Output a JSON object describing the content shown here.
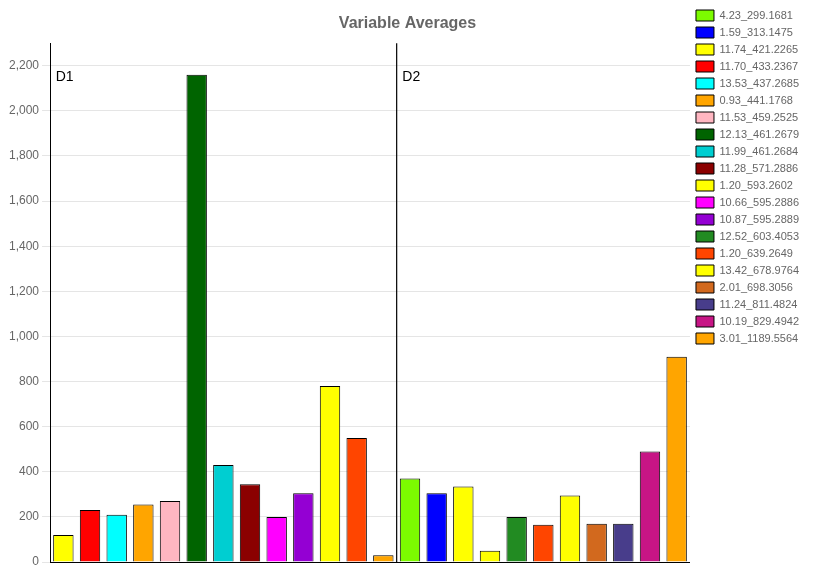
{
  "chart_data": {
    "type": "bar",
    "title": "Variable Averages",
    "categories": [
      null,
      null,
      null,
      null,
      null,
      null,
      null,
      null,
      null,
      null,
      null,
      null,
      null,
      null,
      null,
      null,
      null,
      null,
      null,
      null,
      null,
      null,
      null,
      null
    ],
    "series": [
      {
        "name": "4.23_299.1681",
        "color": "#7CFC00",
        "values": [
          null,
          null,
          null,
          null,
          null,
          null,
          null,
          null,
          null,
          null,
          null,
          null,
          null,
          370,
          null,
          null,
          null,
          null,
          null,
          null,
          null,
          null,
          null,
          null
        ]
      },
      {
        "name": "1.59_313.1475",
        "color": "#0000FF",
        "values": [
          null,
          null,
          null,
          null,
          null,
          null,
          null,
          null,
          null,
          null,
          null,
          null,
          null,
          null,
          305,
          null,
          null,
          null,
          null,
          null,
          null,
          null,
          null,
          null
        ]
      },
      {
        "name": "11.74_421.2265",
        "color": "#FFFF00",
        "values": [
          120,
          null,
          null,
          null,
          null,
          null,
          null,
          null,
          null,
          null,
          null,
          null,
          null,
          null,
          null,
          null,
          null,
          null,
          null,
          null,
          null,
          null,
          null,
          null
        ]
      },
      {
        "name": "11.70_433.2367",
        "color": "#FF0000",
        "values": [
          null,
          230,
          null,
          null,
          null,
          null,
          null,
          null,
          null,
          null,
          null,
          null,
          null,
          null,
          null,
          null,
          null,
          null,
          null,
          null,
          null,
          null,
          null,
          null
        ]
      },
      {
        "name": "13.53_437.2685",
        "color": "#00FFFF",
        "values": [
          null,
          null,
          210,
          null,
          null,
          null,
          null,
          null,
          null,
          null,
          null,
          null,
          null,
          null,
          null,
          null,
          null,
          null,
          null,
          null,
          null,
          null,
          null,
          null
        ]
      },
      {
        "name": "0.93_441.1768",
        "color": "#FFA500",
        "values": [
          null,
          null,
          null,
          255,
          null,
          null,
          null,
          null,
          null,
          null,
          null,
          null,
          null,
          null,
          null,
          null,
          null,
          null,
          null,
          null,
          null,
          null,
          null,
          null
        ]
      },
      {
        "name": "11.53_459.2525",
        "color": "#FFB6C1",
        "values": [
          null,
          null,
          null,
          null,
          270,
          null,
          null,
          null,
          null,
          null,
          null,
          null,
          null,
          null,
          null,
          null,
          null,
          null,
          null,
          null,
          null,
          null,
          null,
          null
        ]
      },
      {
        "name": "12.13_461.2679",
        "color": "#006400",
        "values": [
          null,
          null,
          null,
          null,
          null,
          2160,
          null,
          null,
          null,
          null,
          null,
          null,
          null,
          null,
          null,
          null,
          null,
          null,
          null,
          null,
          null,
          null,
          null,
          null
        ]
      },
      {
        "name": "11.99_461.2684",
        "color": "#00CED1",
        "values": [
          null,
          null,
          null,
          null,
          null,
          null,
          430,
          null,
          null,
          null,
          null,
          null,
          null,
          null,
          null,
          null,
          null,
          null,
          null,
          null,
          null,
          null,
          null,
          null
        ]
      },
      {
        "name": "11.28_571.2886",
        "color": "#8B0000",
        "values": [
          null,
          null,
          null,
          null,
          null,
          null,
          null,
          345,
          null,
          null,
          null,
          null,
          null,
          null,
          null,
          null,
          null,
          null,
          null,
          null,
          null,
          null,
          null,
          null
        ]
      },
      {
        "name": "1.20_593.2602",
        "color": "#FFFF00",
        "values": [
          null,
          null,
          null,
          null,
          null,
          null,
          null,
          null,
          null,
          null,
          780,
          null,
          null,
          null,
          null,
          null,
          50,
          null,
          null,
          null,
          null,
          null,
          null,
          null
        ]
      },
      {
        "name": "10.66_595.2886",
        "color": "#FF00FF",
        "values": [
          null,
          null,
          null,
          null,
          null,
          null,
          null,
          null,
          200,
          null,
          null,
          null,
          null,
          null,
          null,
          null,
          null,
          null,
          null,
          null,
          null,
          null,
          null,
          null
        ]
      },
      {
        "name": "10.87_595.2889",
        "color": "#9400D3",
        "values": [
          null,
          null,
          null,
          null,
          null,
          null,
          null,
          null,
          null,
          305,
          null,
          null,
          null,
          null,
          null,
          null,
          null,
          null,
          null,
          null,
          null,
          null,
          null,
          null
        ]
      },
      {
        "name": "12.52_603.4053",
        "color": "#228B22",
        "values": [
          null,
          null,
          null,
          null,
          null,
          null,
          null,
          null,
          null,
          null,
          null,
          null,
          null,
          null,
          null,
          null,
          null,
          200,
          null,
          null,
          null,
          null,
          null,
          null
        ]
      },
      {
        "name": "1.20_639.2649",
        "color": "#FF4500",
        "values": [
          null,
          null,
          null,
          null,
          null,
          null,
          null,
          null,
          null,
          null,
          null,
          550,
          null,
          null,
          null,
          null,
          null,
          null,
          165,
          null,
          null,
          null,
          null,
          null
        ]
      },
      {
        "name": "13.42_678.9764",
        "color": "#FFFF00",
        "values": [
          null,
          null,
          null,
          null,
          null,
          null,
          null,
          null,
          null,
          null,
          null,
          null,
          null,
          null,
          null,
          335,
          null,
          null,
          null,
          295,
          null,
          null,
          null,
          null
        ]
      },
      {
        "name": "2.01_698.3056",
        "color": "#D2691E",
        "values": [
          null,
          null,
          null,
          null,
          null,
          null,
          null,
          null,
          null,
          null,
          null,
          null,
          null,
          null,
          null,
          null,
          null,
          null,
          null,
          null,
          170,
          null,
          null,
          null
        ]
      },
      {
        "name": "11.24_811.4824",
        "color": "#483D8B",
        "values": [
          null,
          null,
          null,
          null,
          null,
          null,
          null,
          null,
          null,
          null,
          null,
          null,
          null,
          null,
          null,
          null,
          null,
          null,
          null,
          null,
          null,
          170,
          null,
          null
        ]
      },
      {
        "name": "10.19_829.4942",
        "color": "#C71585",
        "values": [
          null,
          null,
          null,
          null,
          null,
          null,
          null,
          null,
          null,
          null,
          null,
          null,
          null,
          null,
          null,
          null,
          null,
          null,
          null,
          null,
          null,
          null,
          490,
          null
        ]
      },
      {
        "name": "3.01_1189.5564",
        "color": "#FFA500",
        "values": [
          null,
          null,
          null,
          null,
          null,
          null,
          null,
          null,
          null,
          null,
          null,
          null,
          30,
          null,
          null,
          null,
          null,
          null,
          null,
          null,
          null,
          null,
          null,
          910
        ]
      }
    ],
    "annotations": [
      {
        "text": "D1",
        "x": 0,
        "y": 2180
      },
      {
        "text": "D2",
        "x": 13,
        "y": 2180
      }
    ],
    "ylim": [
      0,
      2300
    ],
    "yticks": [
      0,
      200,
      400,
      600,
      800,
      1000,
      1200,
      1400,
      1600,
      1800,
      2000,
      2200
    ],
    "grid": true,
    "legend": "upper right",
    "tick_labels": "y"
  }
}
